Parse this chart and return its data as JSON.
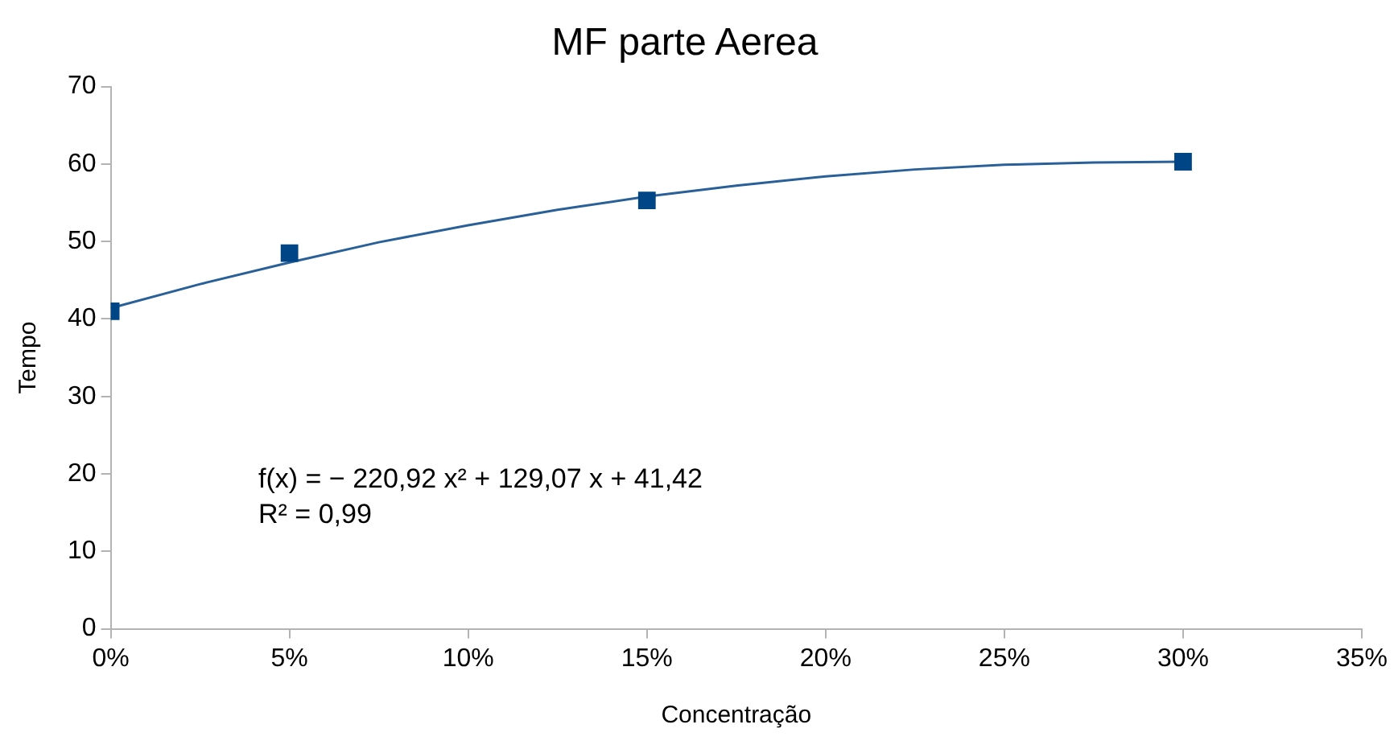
{
  "chart_data": {
    "type": "scatter",
    "title": "MF parte Aerea",
    "xlabel": "Concentração",
    "ylabel": "Tempo",
    "x": [
      0,
      0.05,
      0.15,
      0.3
    ],
    "series": [
      {
        "color": "#004586",
        "values": [
          41,
          48.5,
          55.3,
          60.3
        ],
        "marker": "square"
      },
      {
        "type": "line",
        "color": "#2a6099",
        "x": [
          0,
          0.025,
          0.05,
          0.075,
          0.1,
          0.125,
          0.15,
          0.175,
          0.2,
          0.225,
          0.25,
          0.275,
          0.3
        ],
        "values": [
          41.4,
          44.5,
          47.3,
          49.9,
          52.1,
          54.1,
          55.8,
          57.2,
          58.4,
          59.3,
          59.9,
          60.2,
          60.3
        ],
        "marker": "none"
      }
    ],
    "xlim": [
      0,
      0.35
    ],
    "xticks": [
      {
        "value": 0,
        "label": "0%"
      },
      {
        "value": 0.05,
        "label": "5%"
      },
      {
        "value": 0.1,
        "label": "10%"
      },
      {
        "value": 0.15,
        "label": "15%"
      },
      {
        "value": 0.2,
        "label": "20%"
      },
      {
        "value": 0.25,
        "label": "25%"
      },
      {
        "value": 0.3,
        "label": "30%"
      },
      {
        "value": 0.35,
        "label": "35%"
      }
    ],
    "ylim": [
      0,
      70
    ],
    "yticks": [
      0,
      10,
      20,
      30,
      40,
      50,
      60,
      70
    ],
    "annotations": [
      "f(x) = − 220,92 x² + 129,07 x + 41,42",
      "R² = 0,99"
    ]
  }
}
